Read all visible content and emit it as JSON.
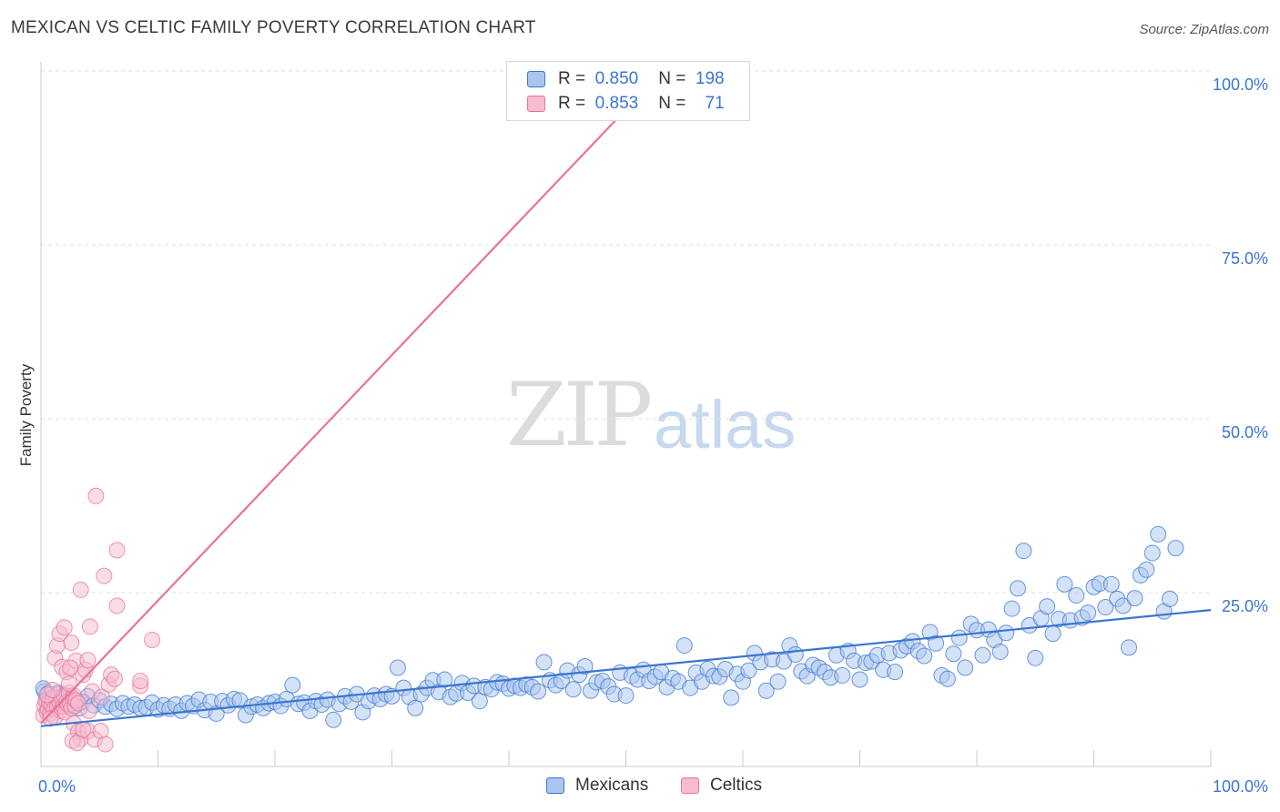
{
  "title": "MEXICAN VS CELTIC FAMILY POVERTY CORRELATION CHART",
  "source": "Source: ZipAtlas.com",
  "watermark": {
    "left": "ZIP",
    "right": "atlas"
  },
  "legend": {
    "rows": [
      {
        "r_label": "R =",
        "r_value": "0.850",
        "n_label": "N =",
        "n_value": "198"
      },
      {
        "r_label": "R =",
        "r_value": "0.853",
        "n_label": "N =",
        "n_value": "71"
      }
    ]
  },
  "bottom_legend": {
    "mexicans": "Mexicans",
    "celtics": "Celtics"
  },
  "chart_data": {
    "type": "scatter",
    "title": "MEXICAN VS CELTIC FAMILY POVERTY CORRELATION CHART",
    "xlabel": "",
    "ylabel": "Family Poverty",
    "xlim": [
      0,
      100
    ],
    "ylim": [
      0,
      100
    ],
    "x_tick_labels": [
      "0.0%",
      "100.0%"
    ],
    "y_tick_labels": [
      "25.0%",
      "50.0%",
      "75.0%",
      "100.0%"
    ],
    "y_ticks": [
      25,
      50,
      75,
      100
    ],
    "grid": true,
    "legend_position": "top-center",
    "colors": {
      "mexicans": "#3b76d1",
      "mexicans_fill": "#a9c6ef",
      "celtics": "#e8729a",
      "celtics_fill": "#f6bcd0",
      "axis_text": "#3b76d1"
    },
    "series": [
      {
        "name": "Mexicans",
        "r": 0.85,
        "n": 198,
        "trend": {
          "x": [
            0,
            100
          ],
          "y": [
            5.8,
            22.5
          ]
        },
        "points": [
          [
            0.3,
            10.8
          ],
          [
            0.5,
            9.5
          ],
          [
            0.7,
            10.2
          ],
          [
            0.9,
            8.6
          ],
          [
            1.1,
            9.8
          ],
          [
            1.3,
            9.1
          ],
          [
            1.5,
            10.6
          ],
          [
            1.7,
            8.9
          ],
          [
            1.9,
            9.4
          ],
          [
            2.1,
            10.1
          ],
          [
            2.3,
            9.0
          ],
          [
            2.5,
            8.7
          ],
          [
            2.7,
            9.6
          ],
          [
            3.0,
            9.2
          ],
          [
            3.3,
            8.4
          ],
          [
            3.6,
            9.3
          ],
          [
            4.0,
            10.1
          ],
          [
            4.5,
            8.8
          ],
          [
            5.0,
            9.5
          ],
          [
            5.5,
            8.6
          ],
          [
            6.0,
            9.0
          ],
          [
            6.5,
            8.3
          ],
          [
            7.0,
            9.1
          ],
          [
            7.5,
            8.6
          ],
          [
            8.0,
            8.9
          ],
          [
            8.5,
            8.4
          ],
          [
            9.0,
            8.5
          ],
          [
            9.5,
            9.2
          ],
          [
            10.0,
            8.2
          ],
          [
            10.5,
            8.8
          ],
          [
            11.0,
            8.3
          ],
          [
            11.5,
            8.9
          ],
          [
            12.0,
            8.0
          ],
          [
            12.5,
            9.1
          ],
          [
            13.0,
            8.7
          ],
          [
            13.5,
            9.6
          ],
          [
            14.0,
            8.1
          ],
          [
            14.5,
            9.3
          ],
          [
            15.0,
            7.6
          ],
          [
            15.5,
            9.4
          ],
          [
            16.0,
            8.8
          ],
          [
            16.5,
            9.7
          ],
          [
            17.0,
            9.5
          ],
          [
            17.5,
            7.4
          ],
          [
            18.0,
            8.6
          ],
          [
            18.5,
            8.9
          ],
          [
            19.0,
            8.4
          ],
          [
            19.5,
            9.1
          ],
          [
            20.0,
            9.3
          ],
          [
            20.5,
            8.7
          ],
          [
            21.0,
            9.7
          ],
          [
            21.5,
            11.7
          ],
          [
            22.0,
            9.0
          ],
          [
            22.5,
            9.2
          ],
          [
            23.0,
            8.0
          ],
          [
            23.5,
            9.4
          ],
          [
            24.0,
            8.9
          ],
          [
            24.5,
            9.6
          ],
          [
            25.0,
            6.7
          ],
          [
            25.5,
            9.0
          ],
          [
            26.0,
            10.1
          ],
          [
            26.5,
            9.3
          ],
          [
            27.0,
            10.4
          ],
          [
            27.5,
            7.8
          ],
          [
            28.0,
            9.4
          ],
          [
            28.5,
            10.2
          ],
          [
            29.0,
            9.7
          ],
          [
            29.5,
            10.4
          ],
          [
            30.0,
            10.1
          ],
          [
            30.5,
            14.2
          ],
          [
            31.0,
            11.3
          ],
          [
            31.5,
            10.0
          ],
          [
            32.0,
            8.4
          ],
          [
            32.5,
            10.4
          ],
          [
            33.0,
            11.3
          ],
          [
            33.5,
            12.4
          ],
          [
            34.0,
            10.7
          ],
          [
            34.5,
            12.5
          ],
          [
            35.0,
            10.0
          ],
          [
            35.5,
            10.5
          ],
          [
            36.0,
            12.0
          ],
          [
            36.5,
            10.6
          ],
          [
            37.0,
            11.6
          ],
          [
            37.5,
            9.4
          ],
          [
            38.0,
            11.4
          ],
          [
            38.5,
            11.1
          ],
          [
            39.0,
            12.1
          ],
          [
            39.5,
            11.9
          ],
          [
            40.0,
            11.2
          ],
          [
            40.5,
            11.6
          ],
          [
            41.0,
            11.3
          ],
          [
            41.5,
            11.8
          ],
          [
            42.0,
            11.4
          ],
          [
            42.5,
            10.8
          ],
          [
            43.0,
            15.0
          ],
          [
            43.5,
            12.4
          ],
          [
            44.0,
            11.7
          ],
          [
            44.5,
            12.3
          ],
          [
            45.0,
            13.8
          ],
          [
            45.5,
            11.1
          ],
          [
            46.0,
            13.2
          ],
          [
            46.5,
            14.4
          ],
          [
            47.0,
            10.9
          ],
          [
            47.5,
            12.1
          ],
          [
            48.0,
            12.3
          ],
          [
            48.5,
            11.5
          ],
          [
            49.0,
            10.4
          ],
          [
            49.5,
            13.5
          ],
          [
            50.0,
            10.2
          ],
          [
            50.5,
            13.0
          ],
          [
            51.0,
            12.5
          ],
          [
            51.5,
            13.9
          ],
          [
            52.0,
            12.3
          ],
          [
            52.5,
            12.9
          ],
          [
            53.0,
            13.6
          ],
          [
            53.5,
            11.4
          ],
          [
            54.0,
            12.7
          ],
          [
            54.5,
            12.2
          ],
          [
            55.0,
            17.4
          ],
          [
            55.5,
            11.3
          ],
          [
            56.0,
            13.5
          ],
          [
            56.5,
            12.2
          ],
          [
            57.0,
            14.0
          ],
          [
            57.5,
            13.0
          ],
          [
            58.0,
            12.9
          ],
          [
            58.5,
            14.0
          ],
          [
            59.0,
            9.9
          ],
          [
            59.5,
            13.3
          ],
          [
            60.0,
            12.2
          ],
          [
            60.5,
            13.8
          ],
          [
            61.0,
            16.3
          ],
          [
            61.5,
            15.0
          ],
          [
            62.0,
            10.9
          ],
          [
            62.5,
            15.4
          ],
          [
            63.0,
            12.2
          ],
          [
            63.5,
            15.1
          ],
          [
            64.0,
            17.4
          ],
          [
            64.5,
            16.1
          ],
          [
            65.0,
            13.7
          ],
          [
            65.5,
            13.0
          ],
          [
            66.0,
            14.6
          ],
          [
            66.5,
            14.2
          ],
          [
            67.0,
            13.6
          ],
          [
            67.5,
            12.8
          ],
          [
            68.0,
            16.0
          ],
          [
            68.5,
            13.1
          ],
          [
            69.0,
            16.6
          ],
          [
            69.5,
            15.2
          ],
          [
            70.0,
            12.5
          ],
          [
            70.5,
            14.9
          ],
          [
            71.0,
            15.1
          ],
          [
            71.5,
            16.0
          ],
          [
            72.0,
            13.9
          ],
          [
            72.5,
            16.3
          ],
          [
            73.0,
            13.6
          ],
          [
            73.5,
            16.7
          ],
          [
            74.0,
            17.3
          ],
          [
            74.5,
            18.0
          ],
          [
            75.0,
            16.6
          ],
          [
            75.5,
            15.9
          ],
          [
            76.0,
            19.3
          ],
          [
            76.5,
            17.7
          ],
          [
            77.0,
            13.1
          ],
          [
            77.5,
            12.6
          ],
          [
            78.0,
            16.2
          ],
          [
            78.5,
            18.5
          ],
          [
            79.0,
            14.2
          ],
          [
            79.5,
            20.5
          ],
          [
            80.0,
            19.6
          ],
          [
            80.5,
            16.0
          ],
          [
            81.0,
            19.7
          ],
          [
            81.5,
            18.2
          ],
          [
            82.0,
            16.5
          ],
          [
            82.5,
            19.2
          ],
          [
            83.0,
            22.7
          ],
          [
            83.5,
            25.6
          ],
          [
            84.0,
            31.0
          ],
          [
            84.5,
            20.3
          ],
          [
            85.0,
            15.6
          ],
          [
            85.5,
            21.3
          ],
          [
            86.0,
            23.0
          ],
          [
            86.5,
            19.1
          ],
          [
            87.0,
            21.2
          ],
          [
            87.5,
            26.2
          ],
          [
            88.0,
            21.0
          ],
          [
            88.5,
            24.6
          ],
          [
            89.0,
            21.4
          ],
          [
            89.5,
            22.1
          ],
          [
            90.0,
            25.8
          ],
          [
            90.5,
            26.3
          ],
          [
            91.0,
            22.9
          ],
          [
            91.5,
            26.2
          ],
          [
            92.0,
            24.1
          ],
          [
            92.5,
            23.1
          ],
          [
            93.0,
            17.1
          ],
          [
            93.5,
            24.2
          ],
          [
            94.0,
            27.5
          ],
          [
            94.5,
            28.3
          ],
          [
            95.0,
            30.7
          ],
          [
            95.5,
            33.4
          ],
          [
            96.0,
            22.3
          ],
          [
            96.5,
            24.1
          ],
          [
            97.0,
            31.4
          ],
          [
            0.2,
            11.2
          ],
          [
            0.6,
            10.5
          ],
          [
            1.0,
            9.9
          ],
          [
            1.4,
            8.8
          ],
          [
            2.0,
            10.3
          ]
        ]
      },
      {
        "name": "Celtics",
        "r": 0.853,
        "n": 71,
        "trend": {
          "x": [
            0,
            50.3
          ],
          "y": [
            6.2,
            95.0
          ]
        },
        "points": [
          [
            0.2,
            7.4
          ],
          [
            0.3,
            8.7
          ],
          [
            0.4,
            9.4
          ],
          [
            0.5,
            7.9
          ],
          [
            0.6,
            8.3
          ],
          [
            0.7,
            9.2
          ],
          [
            0.8,
            7.6
          ],
          [
            0.9,
            8.8
          ],
          [
            1.0,
            9.6
          ],
          [
            1.1,
            8.2
          ],
          [
            1.2,
            7.1
          ],
          [
            1.3,
            9.9
          ],
          [
            1.4,
            8.5
          ],
          [
            1.5,
            10.4
          ],
          [
            1.6,
            9.1
          ],
          [
            1.7,
            8.0
          ],
          [
            1.8,
            9.7
          ],
          [
            1.9,
            8.6
          ],
          [
            2.0,
            10.1
          ],
          [
            2.1,
            7.8
          ],
          [
            2.2,
            9.3
          ],
          [
            2.3,
            8.9
          ],
          [
            2.4,
            10.6
          ],
          [
            2.5,
            9.0
          ],
          [
            2.6,
            8.4
          ],
          [
            2.7,
            9.8
          ],
          [
            2.8,
            10.2
          ],
          [
            2.9,
            8.7
          ],
          [
            3.0,
            9.5
          ],
          [
            3.2,
            9.1
          ],
          [
            0.5,
            10.3
          ],
          [
            0.8,
            6.9
          ],
          [
            1.0,
            11.0
          ],
          [
            1.2,
            15.6
          ],
          [
            1.4,
            17.4
          ],
          [
            1.6,
            19.1
          ],
          [
            1.8,
            14.3
          ],
          [
            2.0,
            20.0
          ],
          [
            2.2,
            13.6
          ],
          [
            2.4,
            11.9
          ],
          [
            2.6,
            17.8
          ],
          [
            2.8,
            6.2
          ],
          [
            3.0,
            15.2
          ],
          [
            3.2,
            5.0
          ],
          [
            3.4,
            4.0
          ],
          [
            3.6,
            13.2
          ],
          [
            3.8,
            13.9
          ],
          [
            4.0,
            5.1
          ],
          [
            4.2,
            20.1
          ],
          [
            4.4,
            10.8
          ],
          [
            2.7,
            3.7
          ],
          [
            3.1,
            3.4
          ],
          [
            3.6,
            5.3
          ],
          [
            4.1,
            8.0
          ],
          [
            4.6,
            3.9
          ],
          [
            5.1,
            5.1
          ],
          [
            5.5,
            3.2
          ],
          [
            5.8,
            11.8
          ],
          [
            6.0,
            13.2
          ],
          [
            6.3,
            12.6
          ],
          [
            3.4,
            25.4
          ],
          [
            4.0,
            15.3
          ],
          [
            4.7,
            38.9
          ],
          [
            5.4,
            27.4
          ],
          [
            5.2,
            10.0
          ],
          [
            6.5,
            31.1
          ],
          [
            6.5,
            23.1
          ],
          [
            8.5,
            11.6
          ],
          [
            8.5,
            12.3
          ],
          [
            9.5,
            18.2
          ],
          [
            2.5,
            14.2
          ]
        ]
      }
    ]
  }
}
